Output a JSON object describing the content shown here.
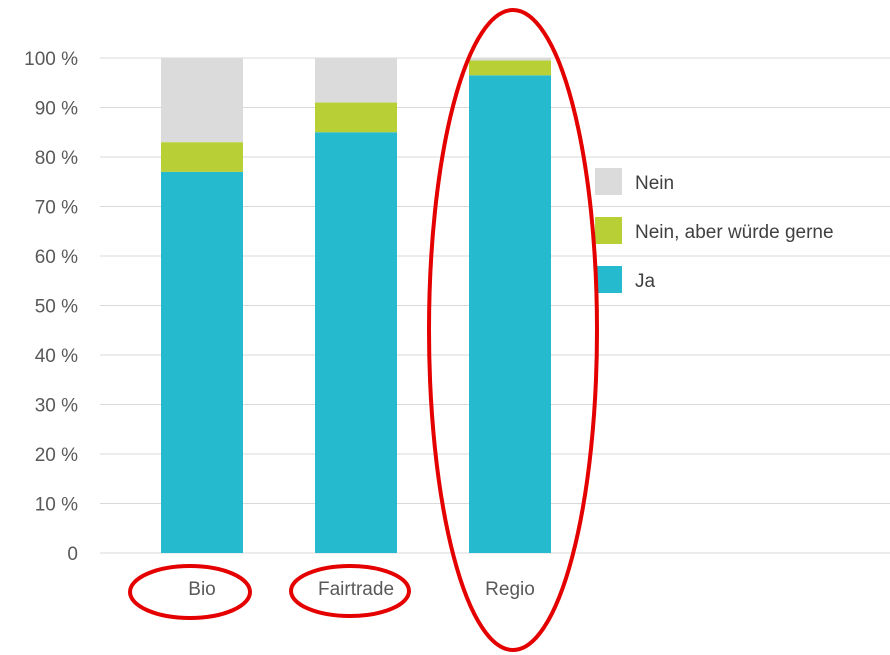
{
  "chart_data": {
    "type": "bar",
    "stacked": true,
    "categories": [
      "Bio",
      "Fairtrade",
      "Regio"
    ],
    "series": [
      {
        "name": "Ja",
        "values": [
          77,
          85,
          96.5
        ],
        "color": "#26BACE"
      },
      {
        "name": "Nein, aber würde gerne",
        "values": [
          6,
          6,
          3
        ],
        "color": "#B8CF36"
      },
      {
        "name": "Nein",
        "values": [
          17,
          9,
          0.5
        ],
        "color": "#DADBDA"
      }
    ],
    "legend_order": [
      "Nein",
      "Nein, aber würde gerne",
      "Ja"
    ],
    "y_ticks": [
      "0",
      "10 %",
      "20 %",
      "30 %",
      "40 %",
      "50 %",
      "60 %",
      "70 %",
      "80 %",
      "90 %",
      "100 %"
    ],
    "ylim": [
      0,
      100
    ],
    "grid": true,
    "legend_position": "right",
    "annotations": {
      "circled_labels": [
        "Bio",
        "Fairtrade"
      ],
      "circled_bar": "Regio",
      "color": "#E50000"
    }
  }
}
